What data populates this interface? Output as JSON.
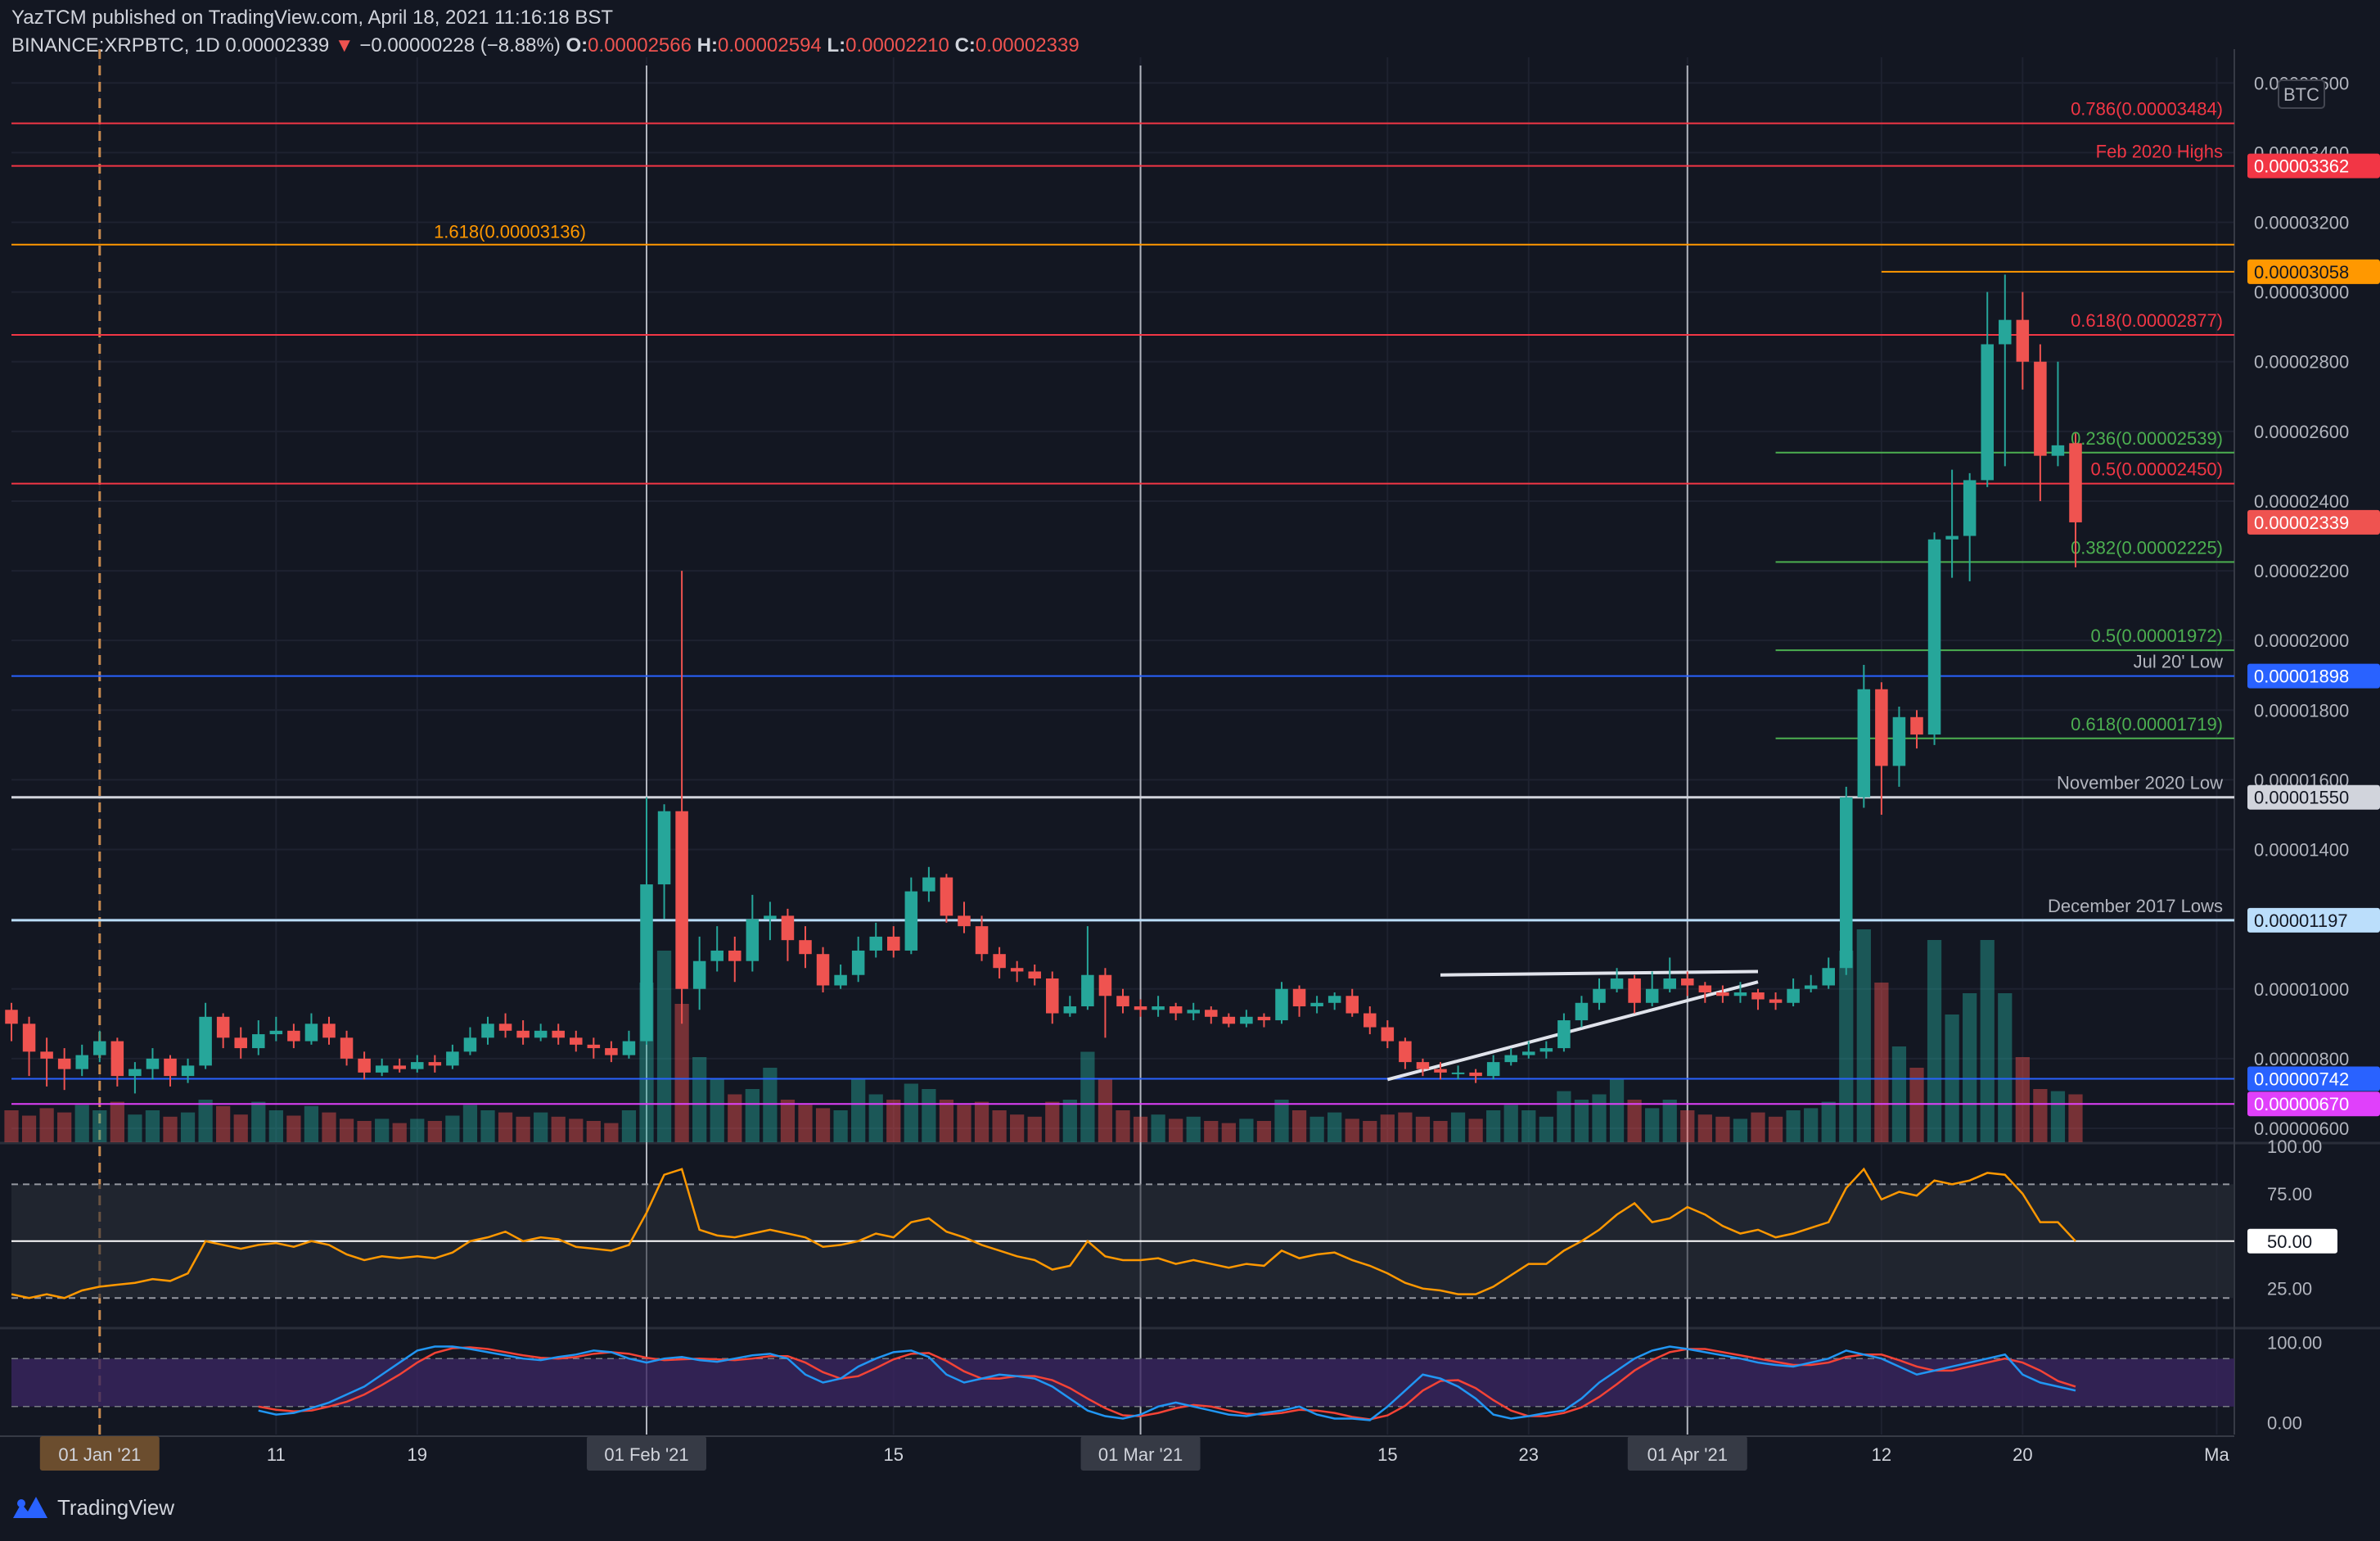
{
  "header": {
    "published": "YazTCM published on TradingView.com, April 18, 2021 11:16:18 BST",
    "symbol": "BINANCE:XRPBTC, 1D",
    "last": "0.00002339",
    "change_arrow": "▼",
    "change": "−0.00000228 (−8.88%)",
    "o_label": "O:",
    "o_value": "0.00002566",
    "h_label": "H:",
    "h_value": "0.00002594",
    "l_label": "L:",
    "l_value": "0.00002210",
    "c_label": "C:",
    "c_value": "0.00002339"
  },
  "brand": {
    "name": "TradingView",
    "icon": "tradingview-logo-icon"
  },
  "colors": {
    "background": "#131722",
    "up": "#26a69a",
    "down": "#ef5350",
    "fib_red": "#f23645",
    "fib_orange": "#ff9800",
    "fib_green": "#4caf50",
    "support_blue": "#2962ff",
    "magenta": "#e040fb",
    "rsi": "#ff9800",
    "stoch_k": "#2196f3",
    "stoch_d": "#f44336"
  },
  "chart_data": {
    "type": "candlestick",
    "ylim": [
      5.6e-06,
      3.65e-05
    ],
    "unit_label": "BTC",
    "x_start": "2020-12-27",
    "x_end": "2021-05-02",
    "y_ticks": [
      "0.00003600",
      "0.00003400",
      "0.00003200",
      "0.00003000",
      "0.00002800",
      "0.00002600",
      "0.00002400",
      "0.00002200",
      "0.00002000",
      "0.00001800",
      "0.00001600",
      "0.00001400",
      "0.00001000",
      "0.00000800",
      "0.00000600"
    ],
    "x_ticks": [
      {
        "date": "2021-01-01",
        "label": "01 Jan '21",
        "highlight": true
      },
      {
        "date": "2021-01-11",
        "label": "11",
        "highlight": false
      },
      {
        "date": "2021-01-19",
        "label": "19",
        "highlight": false
      },
      {
        "date": "2021-02-01",
        "label": "01 Feb '21",
        "highlight": true
      },
      {
        "date": "2021-02-15",
        "label": "15",
        "highlight": false
      },
      {
        "date": "2021-03-01",
        "label": "01 Mar '21",
        "highlight": true
      },
      {
        "date": "2021-03-15",
        "label": "15",
        "highlight": false
      },
      {
        "date": "2021-03-23",
        "label": "23",
        "highlight": false
      },
      {
        "date": "2021-04-01",
        "label": "01 Apr '21",
        "highlight": true
      },
      {
        "date": "2021-04-12",
        "label": "12",
        "highlight": false
      },
      {
        "date": "2021-04-20",
        "label": "20",
        "highlight": false
      },
      {
        "date": "2021-05-01",
        "label": "Ma",
        "highlight": false
      }
    ],
    "vertical_markers": [
      "2021-02-01",
      "2021-03-01",
      "2021-04-01"
    ],
    "levels": [
      {
        "value": 3.484e-05,
        "label": "0.786(0.00003484)",
        "color": "#f23645",
        "tag": ""
      },
      {
        "value": 3.362e-05,
        "label": "Feb 2020 Highs",
        "color": "#f23645",
        "tag": "0.00003362"
      },
      {
        "value": 3.136e-05,
        "label": "1.618(0.00003136)",
        "color": "#ff9800",
        "tag": "",
        "label_left": true
      },
      {
        "value": 3.058e-05,
        "label": "",
        "color": "#ff9800",
        "tag": "0.00003058",
        "short": true
      },
      {
        "value": 2.877e-05,
        "label": "0.618(0.00002877)",
        "color": "#f23645",
        "tag": ""
      },
      {
        "value": 2.539e-05,
        "label": "0.236(0.00002539)",
        "color": "#4caf50",
        "tag": "",
        "short": true
      },
      {
        "value": 2.45e-05,
        "label": "0.5(0.00002450)",
        "color": "#f23645",
        "tag": ""
      },
      {
        "value": 2.225e-05,
        "label": "0.382(0.00002225)",
        "color": "#4caf50",
        "tag": "",
        "short": true
      },
      {
        "value": 1.972e-05,
        "label": "0.5(0.00001972)",
        "color": "#4caf50",
        "tag": "",
        "short": true
      },
      {
        "value": 1.898e-05,
        "label": "Jul 20' Low",
        "color": "#2962ff",
        "tag": "0.00001898"
      },
      {
        "value": 1.719e-05,
        "label": "0.618(0.00001719)",
        "color": "#4caf50",
        "tag": "",
        "short": true
      },
      {
        "value": 1.55e-05,
        "label": "November 2020 Low",
        "color": "#d1d4dc",
        "tag": "0.00001550"
      },
      {
        "value": 1.197e-05,
        "label": "December 2017 Lows",
        "color": "#bbdefb",
        "tag": "0.00001197"
      },
      {
        "value": 7.42e-06,
        "label": "",
        "color": "#2962ff",
        "tag": "0.00000742"
      },
      {
        "value": 6.7e-06,
        "label": "",
        "color": "#e040fb",
        "tag": "0.00000670"
      }
    ],
    "last_price_tag": "0.00002339",
    "trendlines": [
      {
        "x1": "2021-03-18",
        "y1": 1.04e-05,
        "x2": "2021-04-05",
        "y2": 1.05e-05
      },
      {
        "x1": "2021-03-15",
        "y1": 7.4e-06,
        "x2": "2021-04-05",
        "y2": 1.02e-05
      }
    ],
    "candles_start": "2020-12-27",
    "candles": [
      [
        9.4,
        9.0,
        9.6,
        8.5
      ],
      [
        9.0,
        8.2,
        9.2,
        7.5
      ],
      [
        8.2,
        8.0,
        8.6,
        7.2
      ],
      [
        8.0,
        7.7,
        8.3,
        7.1
      ],
      [
        7.7,
        8.1,
        8.4,
        7.5
      ],
      [
        8.1,
        8.5,
        8.8,
        7.9
      ],
      [
        8.5,
        7.5,
        8.6,
        7.2
      ],
      [
        7.5,
        7.7,
        7.9,
        7.0
      ],
      [
        7.7,
        8.0,
        8.3,
        7.4
      ],
      [
        8.0,
        7.5,
        8.1,
        7.2
      ],
      [
        7.5,
        7.8,
        8.0,
        7.3
      ],
      [
        7.8,
        9.2,
        9.6,
        7.7
      ],
      [
        9.2,
        8.6,
        9.3,
        8.3
      ],
      [
        8.6,
        8.3,
        8.9,
        8.0
      ],
      [
        8.3,
        8.7,
        9.1,
        8.1
      ],
      [
        8.7,
        8.8,
        9.2,
        8.5
      ],
      [
        8.8,
        8.5,
        9.0,
        8.3
      ],
      [
        8.5,
        9.0,
        9.3,
        8.4
      ],
      [
        9.0,
        8.6,
        9.2,
        8.4
      ],
      [
        8.6,
        8.0,
        8.8,
        7.8
      ],
      [
        8.0,
        7.6,
        8.2,
        7.4
      ],
      [
        7.6,
        7.8,
        8.0,
        7.5
      ],
      [
        7.8,
        7.7,
        8.0,
        7.6
      ],
      [
        7.7,
        7.9,
        8.1,
        7.6
      ],
      [
        7.9,
        7.8,
        8.1,
        7.6
      ],
      [
        7.8,
        8.2,
        8.4,
        7.7
      ],
      [
        8.2,
        8.6,
        8.9,
        8.1
      ],
      [
        8.6,
        9.0,
        9.2,
        8.4
      ],
      [
        9.0,
        8.8,
        9.3,
        8.6
      ],
      [
        8.8,
        8.6,
        9.1,
        8.4
      ],
      [
        8.6,
        8.8,
        9.0,
        8.5
      ],
      [
        8.8,
        8.6,
        9.0,
        8.4
      ],
      [
        8.6,
        8.4,
        8.8,
        8.2
      ],
      [
        8.4,
        8.3,
        8.6,
        8.0
      ],
      [
        8.3,
        8.1,
        8.5,
        7.9
      ],
      [
        8.1,
        8.5,
        8.8,
        8.0
      ],
      [
        8.5,
        13.0,
        15.5,
        8.4
      ],
      [
        13.0,
        15.1,
        15.3,
        12.0
      ],
      [
        15.1,
        10.0,
        22.0,
        9.0
      ],
      [
        10.0,
        10.8,
        11.5,
        9.4
      ],
      [
        10.8,
        11.1,
        11.8,
        10.5
      ],
      [
        11.1,
        10.8,
        11.5,
        10.2
      ],
      [
        10.8,
        12.0,
        12.7,
        10.5
      ],
      [
        12.0,
        12.1,
        12.5,
        11.4
      ],
      [
        12.1,
        11.4,
        12.3,
        10.8
      ],
      [
        11.4,
        11.0,
        11.8,
        10.6
      ],
      [
        11.0,
        10.1,
        11.2,
        9.9
      ],
      [
        10.1,
        10.4,
        10.7,
        10.0
      ],
      [
        10.4,
        11.1,
        11.5,
        10.2
      ],
      [
        11.1,
        11.5,
        11.9,
        10.9
      ],
      [
        11.5,
        11.1,
        11.8,
        10.9
      ],
      [
        11.1,
        12.8,
        13.2,
        11.0
      ],
      [
        12.8,
        13.2,
        13.5,
        12.5
      ],
      [
        13.2,
        12.1,
        13.3,
        11.9
      ],
      [
        12.1,
        11.8,
        12.5,
        11.6
      ],
      [
        11.8,
        11.0,
        12.1,
        10.8
      ],
      [
        11.0,
        10.6,
        11.2,
        10.3
      ],
      [
        10.6,
        10.5,
        10.8,
        10.2
      ],
      [
        10.5,
        10.3,
        10.7,
        10.1
      ],
      [
        10.3,
        9.3,
        10.5,
        9.0
      ],
      [
        9.3,
        9.5,
        9.8,
        9.2
      ],
      [
        9.5,
        10.4,
        11.8,
        9.4
      ],
      [
        10.4,
        9.8,
        10.6,
        8.6
      ],
      [
        9.8,
        9.5,
        10.0,
        9.3
      ],
      [
        9.5,
        9.4,
        9.7,
        9.2
      ],
      [
        9.4,
        9.5,
        9.8,
        9.2
      ],
      [
        9.5,
        9.3,
        9.6,
        9.1
      ],
      [
        9.3,
        9.4,
        9.6,
        9.1
      ],
      [
        9.4,
        9.2,
        9.5,
        9.0
      ],
      [
        9.2,
        9.0,
        9.3,
        8.9
      ],
      [
        9.0,
        9.2,
        9.4,
        8.9
      ],
      [
        9.2,
        9.1,
        9.3,
        8.9
      ],
      [
        9.1,
        10.0,
        10.2,
        9.0
      ],
      [
        10.0,
        9.5,
        10.1,
        9.2
      ],
      [
        9.5,
        9.6,
        9.8,
        9.3
      ],
      [
        9.6,
        9.8,
        9.9,
        9.4
      ],
      [
        9.8,
        9.3,
        10.0,
        9.2
      ],
      [
        9.3,
        8.9,
        9.5,
        8.7
      ],
      [
        8.9,
        8.5,
        9.1,
        8.3
      ],
      [
        8.5,
        7.9,
        8.6,
        7.7
      ],
      [
        7.9,
        7.7,
        8.0,
        7.5
      ],
      [
        7.7,
        7.6,
        7.9,
        7.4
      ],
      [
        7.6,
        7.6,
        7.8,
        7.4
      ],
      [
        7.6,
        7.5,
        7.7,
        7.3
      ],
      [
        7.5,
        7.9,
        8.1,
        7.4
      ],
      [
        7.9,
        8.1,
        8.3,
        7.8
      ],
      [
        8.1,
        8.2,
        8.5,
        8.0
      ],
      [
        8.2,
        8.3,
        8.5,
        8.0
      ],
      [
        8.3,
        9.1,
        9.3,
        8.2
      ],
      [
        9.1,
        9.6,
        9.8,
        8.9
      ],
      [
        9.6,
        10.0,
        10.3,
        9.4
      ],
      [
        10.0,
        10.3,
        10.6,
        9.9
      ],
      [
        10.3,
        9.6,
        10.4,
        9.3
      ],
      [
        9.6,
        10.0,
        10.5,
        9.5
      ],
      [
        10.0,
        10.3,
        10.9,
        9.9
      ],
      [
        10.3,
        10.1,
        10.5,
        9.8
      ],
      [
        10.1,
        9.9,
        10.2,
        9.6
      ],
      [
        9.9,
        9.8,
        10.1,
        9.6
      ],
      [
        9.8,
        9.9,
        10.2,
        9.6
      ],
      [
        9.9,
        9.7,
        10.0,
        9.4
      ],
      [
        9.7,
        9.6,
        9.9,
        9.4
      ],
      [
        9.6,
        10.0,
        10.3,
        9.5
      ],
      [
        10.0,
        10.1,
        10.4,
        9.9
      ],
      [
        10.1,
        10.6,
        10.9,
        10.0
      ],
      [
        10.6,
        15.5,
        15.8,
        10.4
      ],
      [
        15.5,
        18.6,
        19.3,
        15.2
      ],
      [
        18.6,
        16.4,
        18.8,
        15.0
      ],
      [
        16.4,
        17.8,
        18.1,
        15.8
      ],
      [
        17.8,
        17.3,
        18.0,
        16.9
      ],
      [
        17.3,
        22.9,
        23.1,
        17.0
      ],
      [
        22.9,
        23.0,
        24.9,
        21.8
      ],
      [
        23.0,
        24.6,
        24.8,
        21.7
      ],
      [
        24.6,
        28.5,
        30.0,
        24.4
      ],
      [
        28.5,
        29.2,
        30.5,
        25.0
      ],
      [
        29.2,
        28.0,
        30.0,
        27.2
      ],
      [
        28.0,
        25.3,
        28.5,
        24.0
      ],
      [
        25.3,
        25.6,
        28.0,
        25.0
      ],
      [
        25.66,
        23.39,
        25.94,
        22.1
      ]
    ],
    "volume_scale": 0.001,
    "volumes": [
      30,
      25,
      32,
      28,
      35,
      30,
      38,
      26,
      30,
      24,
      28,
      40,
      34,
      26,
      38,
      30,
      25,
      34,
      28,
      22,
      20,
      22,
      18,
      22,
      20,
      25,
      35,
      30,
      28,
      24,
      28,
      24,
      22,
      20,
      18,
      30,
      150,
      180,
      130,
      80,
      60,
      45,
      50,
      70,
      40,
      35,
      32,
      30,
      60,
      45,
      40,
      55,
      50,
      40,
      35,
      38,
      30,
      26,
      24,
      38,
      40,
      85,
      60,
      30,
      24,
      26,
      22,
      24,
      20,
      18,
      22,
      20,
      40,
      30,
      24,
      28,
      22,
      20,
      26,
      28,
      24,
      20,
      28,
      22,
      30,
      35,
      30,
      24,
      48,
      40,
      45,
      60,
      40,
      32,
      40,
      30,
      26,
      24,
      22,
      28,
      24,
      30,
      32,
      38,
      180,
      200,
      150,
      90,
      70,
      190,
      120,
      140,
      190,
      140,
      80,
      50,
      48,
      45
    ],
    "rsi": {
      "ylim": [
        5,
        100
      ],
      "ticks": [
        "100.00",
        "75.00",
        "50.00",
        "25.00"
      ],
      "upper": 80,
      "lower": 20,
      "mid": 50,
      "mid_label": "50.00",
      "values": [
        22,
        20,
        22,
        20,
        24,
        26,
        27,
        28,
        30,
        29,
        33,
        50,
        48,
        46,
        48,
        49,
        47,
        50,
        48,
        43,
        40,
        42,
        41,
        42,
        41,
        44,
        50,
        52,
        55,
        50,
        52,
        51,
        47,
        46,
        45,
        48,
        65,
        85,
        88,
        56,
        53,
        52,
        54,
        56,
        54,
        52,
        47,
        48,
        50,
        54,
        52,
        60,
        62,
        55,
        52,
        48,
        45,
        42,
        40,
        35,
        37,
        50,
        42,
        40,
        40,
        41,
        38,
        40,
        38,
        36,
        38,
        37,
        45,
        41,
        43,
        44,
        40,
        37,
        33,
        28,
        25,
        24,
        22,
        22,
        26,
        32,
        38,
        38,
        45,
        50,
        56,
        64,
        70,
        60,
        62,
        68,
        64,
        58,
        54,
        56,
        52,
        54,
        57,
        60,
        78,
        88,
        72,
        76,
        74,
        82,
        80,
        82,
        86,
        85,
        75,
        60,
        60,
        50
      ]
    },
    "stoch_rsi": {
      "ylim": [
        -15,
        115
      ],
      "ticks": [
        "100.00",
        "0.00"
      ],
      "upper": 80,
      "lower": 20,
      "k": [
        15,
        10,
        12,
        18,
        25,
        35,
        45,
        60,
        75,
        90,
        95,
        95,
        92,
        88,
        84,
        80,
        78,
        82,
        85,
        90,
        88,
        80,
        75,
        80,
        82,
        78,
        76,
        80,
        84,
        86,
        80,
        60,
        50,
        55,
        70,
        80,
        88,
        90,
        82,
        60,
        50,
        55,
        60,
        58,
        55,
        45,
        30,
        15,
        8,
        5,
        10,
        20,
        25,
        20,
        15,
        10,
        8,
        12,
        15,
        20,
        10,
        5,
        5,
        3,
        20,
        40,
        60,
        55,
        45,
        30,
        10,
        5,
        8,
        12,
        15,
        30,
        50,
        65,
        80,
        90,
        95,
        92,
        88,
        84,
        80,
        75,
        72,
        70,
        75,
        80,
        90,
        85,
        80,
        70,
        60,
        65,
        70,
        75,
        80,
        85,
        60,
        50,
        45,
        40
      ],
      "d": [
        20,
        16,
        14,
        15,
        20,
        26,
        35,
        47,
        60,
        75,
        87,
        93,
        94,
        92,
        88,
        84,
        81,
        80,
        82,
        86,
        88,
        86,
        81,
        78,
        79,
        80,
        79,
        78,
        80,
        83,
        83,
        75,
        63,
        55,
        58,
        68,
        79,
        86,
        87,
        77,
        64,
        55,
        55,
        58,
        58,
        53,
        43,
        30,
        18,
        9,
        8,
        12,
        18,
        22,
        20,
        15,
        11,
        10,
        12,
        16,
        15,
        12,
        7,
        4,
        9,
        21,
        40,
        52,
        53,
        43,
        28,
        15,
        8,
        8,
        12,
        19,
        32,
        48,
        65,
        78,
        88,
        92,
        92,
        88,
        84,
        80,
        76,
        72,
        72,
        75,
        82,
        85,
        85,
        78,
        70,
        65,
        65,
        70,
        75,
        80,
        75,
        65,
        52,
        45
      ],
      "start_index": 14
    }
  }
}
